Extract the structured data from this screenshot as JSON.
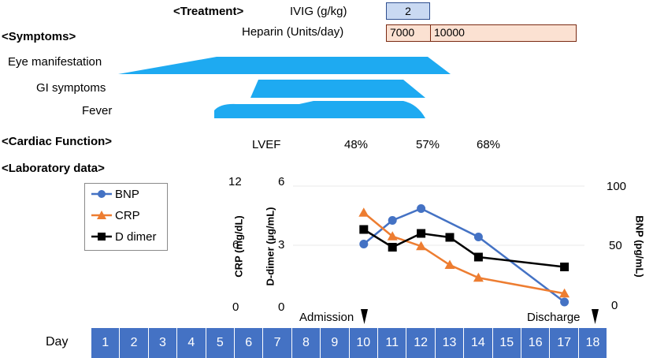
{
  "treatment": {
    "header": "<Treatment>",
    "ivig_label": "IVIG (g/kg)",
    "ivig_value": "2",
    "heparin_label": "Heparin (Units/day)",
    "heparin_values": [
      "7000",
      "10000"
    ]
  },
  "symptoms": {
    "header": "<Symptoms>",
    "items": [
      "Eye manifestation",
      "GI symptoms",
      "Fever"
    ]
  },
  "cardiac": {
    "header": "<Cardiac Function>",
    "label": "LVEF",
    "values": [
      "48%",
      "57%",
      "68%"
    ]
  },
  "lab": {
    "header": "<Laboratory data>"
  },
  "timeline": {
    "day_label": "Day",
    "days": [
      "1",
      "2",
      "3",
      "4",
      "5",
      "6",
      "7",
      "8",
      "9",
      "10",
      "11",
      "12",
      "13",
      "14",
      "15",
      "16",
      "17",
      "18"
    ],
    "admission_label": "Admission",
    "discharge_label": "Discharge"
  },
  "colors": {
    "bnp": "#4472c4",
    "crp": "#ed7d31",
    "ddimer": "#000000",
    "symptom": "#1eaaf1",
    "ivig_fill": "#c9d9f2",
    "ivig_border": "#2f4f8f",
    "heparin_fill": "#fbe1d2",
    "heparin_border": "#7a2a12",
    "day_fill": "#4472c4"
  },
  "chart_data": {
    "type": "line",
    "x": [
      10,
      11,
      12,
      13,
      14,
      15,
      16,
      17
    ],
    "xlabel": "Day",
    "series": [
      {
        "name": "BNP",
        "axis": "right",
        "unit": "pg/mL",
        "x": [
          10,
          11,
          12,
          14,
          17
        ],
        "values": [
          51,
          71,
          81,
          57,
          2
        ]
      },
      {
        "name": "CRP",
        "axis": "left_crp",
        "unit": "mg/dL",
        "x": [
          10,
          11,
          12,
          13,
          14,
          17
        ],
        "values": [
          9.3,
          6.9,
          5.9,
          4.0,
          2.7,
          1.1
        ]
      },
      {
        "name": "D dimer",
        "axis": "left_ddimer",
        "unit": "µg/mL",
        "x": [
          10,
          11,
          12,
          13,
          14,
          17
        ],
        "values": [
          3.8,
          2.9,
          3.6,
          3.4,
          2.4,
          1.9
        ]
      }
    ],
    "axes": {
      "crp": {
        "label": "CRP (mg/dL)",
        "ticks": [
          "12",
          "6",
          "0"
        ],
        "range": [
          0,
          12
        ]
      },
      "ddimer": {
        "label": "D-dimer (µg/mL)",
        "ticks": [
          "6",
          "3",
          "0"
        ],
        "range": [
          0,
          6
        ]
      },
      "bnp": {
        "label": "BNP (pg/mL)",
        "ticks": [
          "100",
          "50",
          "0"
        ],
        "range": [
          0,
          100
        ]
      }
    },
    "legend": [
      "BNP",
      "CRP",
      "D dimer"
    ]
  }
}
